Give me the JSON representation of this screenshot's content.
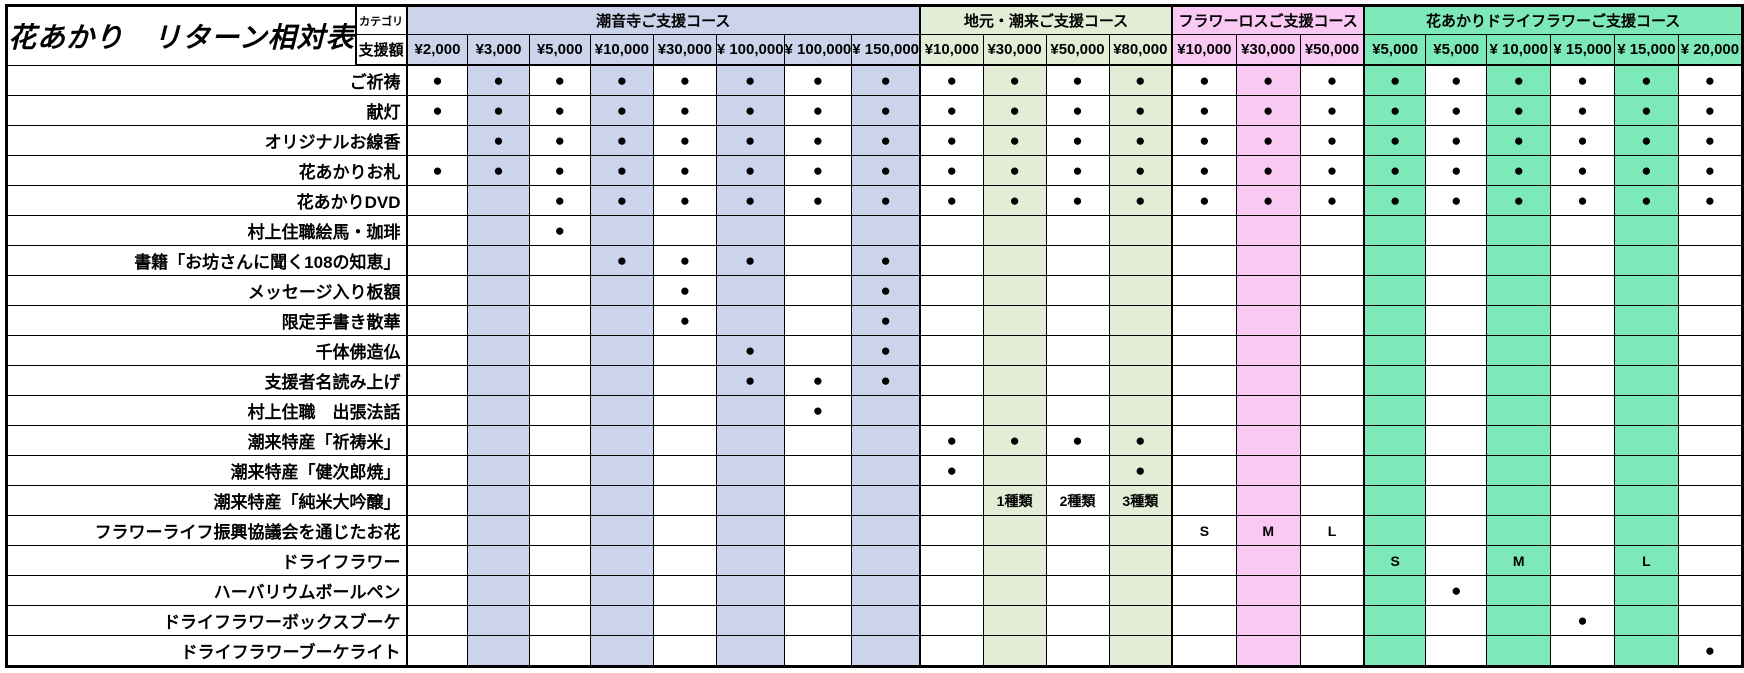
{
  "chart_data": {
    "type": "table",
    "title": "花あかり　リターン相対表",
    "row_header_labels": {
      "category": "カテゴリ",
      "amount": "支援額"
    },
    "dot_char": "●",
    "column_groups": [
      {
        "name": "潮音寺ご支援コース",
        "color": "#ccd4ec",
        "stripe_first": false,
        "prices": [
          "¥2,000",
          "¥3,000",
          "¥5,000",
          "¥10,000",
          "¥30,000",
          "¥ 100,000",
          "¥ 100,000",
          "¥ 150,000"
        ]
      },
      {
        "name": "地元・潮来ご支援コース",
        "color": "#e3ecd5",
        "stripe_first": false,
        "prices": [
          "¥10,000",
          "¥30,000",
          "¥50,000",
          "¥80,000"
        ]
      },
      {
        "name": "フラワーロスご支援コース",
        "color": "#fac9f3",
        "stripe_first": false,
        "prices": [
          "¥10,000",
          "¥30,000",
          "¥50,000"
        ]
      },
      {
        "name": "花あかりドライフラワーご支援コース",
        "color": "#7de9b9",
        "stripe_first": true,
        "prices": [
          "¥5,000",
          "¥5,000",
          "¥ 10,000",
          "¥ 15,000",
          "¥ 15,000",
          "¥ 20,000"
        ]
      }
    ],
    "rows": [
      {
        "label": "ご祈祷",
        "cells": [
          "●",
          "●",
          "●",
          "●",
          "●",
          "●",
          "●",
          "●",
          "●",
          "●",
          "●",
          "●",
          "●",
          "●",
          "●",
          "●",
          "●",
          "●",
          "●",
          "●",
          "●"
        ]
      },
      {
        "label": "献灯",
        "cells": [
          "●",
          "●",
          "●",
          "●",
          "●",
          "●",
          "●",
          "●",
          "●",
          "●",
          "●",
          "●",
          "●",
          "●",
          "●",
          "●",
          "●",
          "●",
          "●",
          "●",
          "●"
        ]
      },
      {
        "label": "オリジナルお線香",
        "cells": [
          "",
          "●",
          "●",
          "●",
          "●",
          "●",
          "●",
          "●",
          "●",
          "●",
          "●",
          "●",
          "●",
          "●",
          "●",
          "●",
          "●",
          "●",
          "●",
          "●",
          "●"
        ]
      },
      {
        "label": "花あかりお札",
        "cells": [
          "●",
          "●",
          "●",
          "●",
          "●",
          "●",
          "●",
          "●",
          "●",
          "●",
          "●",
          "●",
          "●",
          "●",
          "●",
          "●",
          "●",
          "●",
          "●",
          "●",
          "●"
        ]
      },
      {
        "label": "花あかりDVD",
        "cells": [
          "",
          "",
          "●",
          "●",
          "●",
          "●",
          "●",
          "●",
          "●",
          "●",
          "●",
          "●",
          "●",
          "●",
          "●",
          "●",
          "●",
          "●",
          "●",
          "●",
          "●"
        ]
      },
      {
        "label": "村上住職絵馬・珈琲",
        "cells": [
          "",
          "",
          "●",
          "",
          "",
          "",
          "",
          "",
          "",
          "",
          "",
          "",
          "",
          "",
          "",
          "",
          "",
          "",
          "",
          "",
          ""
        ]
      },
      {
        "label": "書籍「お坊さんに聞く108の知恵」",
        "cells": [
          "",
          "",
          "",
          "●",
          "●",
          "●",
          "",
          "●",
          "",
          "",
          "",
          "",
          "",
          "",
          "",
          "",
          "",
          "",
          "",
          "",
          ""
        ]
      },
      {
        "label": "メッセージ入り板額",
        "cells": [
          "",
          "",
          "",
          "",
          "●",
          "",
          "",
          "●",
          "",
          "",
          "",
          "",
          "",
          "",
          "",
          "",
          "",
          "",
          "",
          "",
          ""
        ]
      },
      {
        "label": "限定手書き散華",
        "cells": [
          "",
          "",
          "",
          "",
          "●",
          "",
          "",
          "●",
          "",
          "",
          "",
          "",
          "",
          "",
          "",
          "",
          "",
          "",
          "",
          "",
          ""
        ]
      },
      {
        "label": "千体佛造仏",
        "cells": [
          "",
          "",
          "",
          "",
          "",
          "●",
          "",
          "●",
          "",
          "",
          "",
          "",
          "",
          "",
          "",
          "",
          "",
          "",
          "",
          "",
          ""
        ]
      },
      {
        "label": "支援者名読み上げ",
        "cells": [
          "",
          "",
          "",
          "",
          "",
          "●",
          "●",
          "●",
          "",
          "",
          "",
          "",
          "",
          "",
          "",
          "",
          "",
          "",
          "",
          "",
          ""
        ]
      },
      {
        "label": "村上住職　出張法話",
        "cells": [
          "",
          "",
          "",
          "",
          "",
          "",
          "●",
          "",
          "",
          "",
          "",
          "",
          "",
          "",
          "",
          "",
          "",
          "",
          "",
          "",
          ""
        ]
      },
      {
        "label": "潮来特産「祈祷米」",
        "cells": [
          "",
          "",
          "",
          "",
          "",
          "",
          "",
          "",
          "●",
          "●",
          "●",
          "●",
          "",
          "",
          "",
          "",
          "",
          "",
          "",
          "",
          ""
        ]
      },
      {
        "label": "潮来特産「健次郎焼」",
        "cells": [
          "",
          "",
          "",
          "",
          "",
          "",
          "",
          "",
          "●",
          "",
          "",
          "●",
          "",
          "",
          "",
          "",
          "",
          "",
          "",
          "",
          ""
        ]
      },
      {
        "label": "潮来特産「純米大吟醸」",
        "cells": [
          "",
          "",
          "",
          "",
          "",
          "",
          "",
          "",
          "",
          "1種類",
          "2種類",
          "3種類",
          "",
          "",
          "",
          "",
          "",
          "",
          "",
          "",
          ""
        ]
      },
      {
        "label": "フラワーライフ振興協議会を通じたお花",
        "cells": [
          "",
          "",
          "",
          "",
          "",
          "",
          "",
          "",
          "",
          "",
          "",
          "",
          "S",
          "M",
          "L",
          "",
          "",
          "",
          "",
          "",
          ""
        ]
      },
      {
        "label": "ドライフラワー",
        "cells": [
          "",
          "",
          "",
          "",
          "",
          "",
          "",
          "",
          "",
          "",
          "",
          "",
          "",
          "",
          "",
          "S",
          "",
          "M",
          "",
          "L",
          ""
        ]
      },
      {
        "label": "ハーバリウムボールペン",
        "cells": [
          "",
          "",
          "",
          "",
          "",
          "",
          "",
          "",
          "",
          "",
          "",
          "",
          "",
          "",
          "",
          "",
          "●",
          "",
          "",
          "",
          ""
        ]
      },
      {
        "label": "ドライフラワーボックスブーケ",
        "cells": [
          "",
          "",
          "",
          "",
          "",
          "",
          "",
          "",
          "",
          "",
          "",
          "",
          "",
          "",
          "",
          "",
          "",
          "",
          "●",
          "",
          ""
        ]
      },
      {
        "label": "ドライフラワーブーケライト",
        "cells": [
          "",
          "",
          "",
          "",
          "",
          "",
          "",
          "",
          "",
          "",
          "",
          "",
          "",
          "",
          "",
          "",
          "",
          "",
          "",
          "",
          "●"
        ]
      }
    ]
  }
}
